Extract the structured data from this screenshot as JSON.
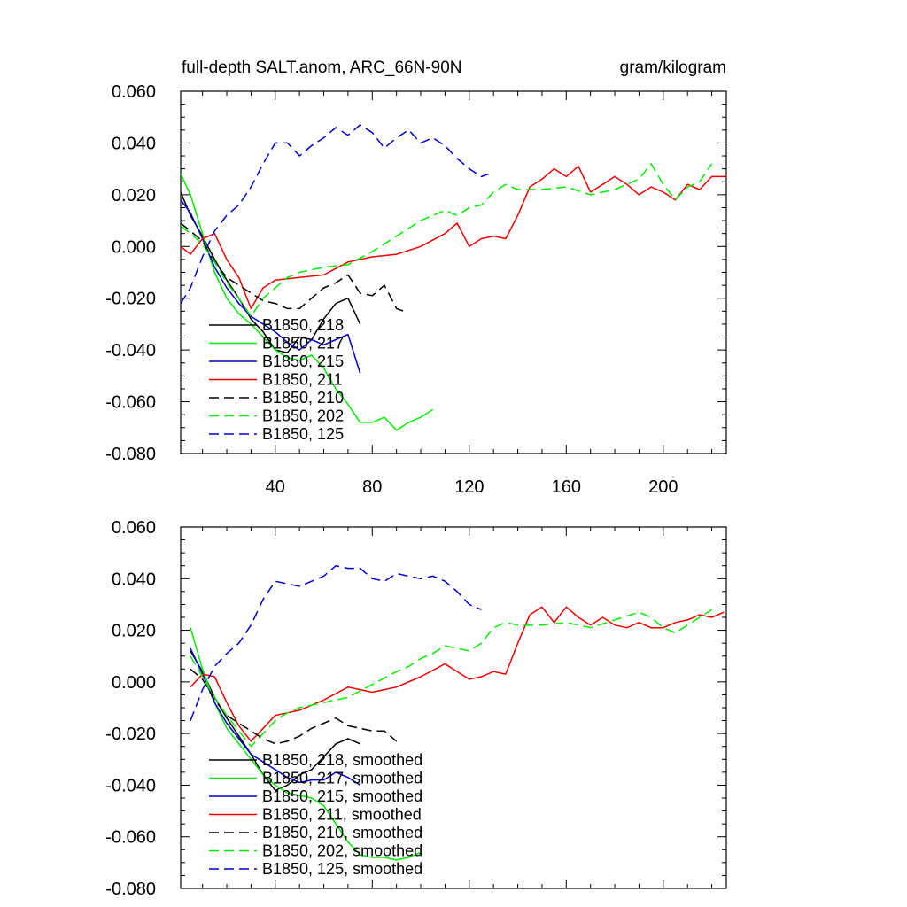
{
  "figure": {
    "title_left": "full-depth SALT.anom, ARC_66N-90N",
    "title_right": "gram/kilogram"
  },
  "chart_data": [
    {
      "type": "line",
      "panel": "top",
      "title": "full-depth SALT.anom, ARC_66N-90N",
      "units": "gram/kilogram",
      "xlim": [
        1,
        226
      ],
      "ylim": [
        -0.08,
        0.06
      ],
      "x_ticks": [
        40,
        80,
        120,
        160,
        200
      ],
      "x_tick_labels": [
        "40",
        "80",
        "120",
        "160",
        "200"
      ],
      "y_ticks": [
        -0.08,
        -0.06,
        -0.04,
        -0.02,
        0.0,
        0.02,
        0.04,
        0.06
      ],
      "y_tick_labels": [
        "-0.080",
        "-0.060",
        "-0.040",
        "-0.020",
        "0.000",
        "0.020",
        "0.040",
        "0.060"
      ],
      "legend_position": "lower-left",
      "series": [
        {
          "name": "B1850, 218",
          "color": "#000000",
          "dash": "solid",
          "x": [
            1,
            5,
            10,
            15,
            20,
            25,
            30,
            35,
            40,
            45,
            50,
            55,
            60,
            65,
            70,
            75
          ],
          "y": [
            0.021,
            0.012,
            0.004,
            -0.005,
            -0.013,
            -0.02,
            -0.028,
            -0.033,
            -0.04,
            -0.041,
            -0.035,
            -0.036,
            -0.028,
            -0.022,
            -0.02,
            -0.03
          ]
        },
        {
          "name": "B1850, 217",
          "color": "#00ee00",
          "dash": "solid",
          "x": [
            1,
            5,
            10,
            15,
            20,
            25,
            30,
            35,
            40,
            45,
            50,
            55,
            60,
            65,
            70,
            75,
            80,
            85,
            90,
            95,
            100,
            105
          ],
          "y": [
            0.028,
            0.02,
            0.005,
            -0.01,
            -0.02,
            -0.026,
            -0.03,
            -0.035,
            -0.04,
            -0.043,
            -0.044,
            -0.042,
            -0.047,
            -0.055,
            -0.061,
            -0.068,
            -0.068,
            -0.066,
            -0.071,
            -0.068,
            -0.066,
            -0.063
          ]
        },
        {
          "name": "B1850, 215",
          "color": "#0000cc",
          "dash": "solid",
          "x": [
            1,
            5,
            10,
            15,
            20,
            25,
            30,
            35,
            40,
            45,
            50,
            55,
            60,
            65,
            70,
            75
          ],
          "y": [
            0.018,
            0.013,
            0.003,
            -0.008,
            -0.016,
            -0.022,
            -0.027,
            -0.03,
            -0.033,
            -0.037,
            -0.04,
            -0.036,
            -0.038,
            -0.036,
            -0.034,
            -0.049
          ]
        },
        {
          "name": "B1850, 211",
          "color": "#ee0000",
          "dash": "solid",
          "x": [
            1,
            5,
            10,
            15,
            20,
            25,
            30,
            35,
            40,
            50,
            60,
            70,
            80,
            90,
            100,
            110,
            115,
            120,
            125,
            130,
            135,
            140,
            145,
            150,
            155,
            160,
            165,
            170,
            175,
            180,
            185,
            190,
            195,
            200,
            205,
            210,
            215,
            220,
            226
          ],
          "y": [
            0.0,
            -0.003,
            0.003,
            0.005,
            -0.005,
            -0.012,
            -0.024,
            -0.016,
            -0.013,
            -0.012,
            -0.011,
            -0.006,
            -0.004,
            -0.003,
            0.0,
            0.005,
            0.009,
            0.0,
            0.003,
            0.004,
            0.003,
            0.012,
            0.023,
            0.026,
            0.03,
            0.027,
            0.031,
            0.021,
            0.024,
            0.027,
            0.024,
            0.02,
            0.023,
            0.021,
            0.018,
            0.024,
            0.022,
            0.027,
            0.027
          ]
        },
        {
          "name": "B1850, 210",
          "color": "#000000",
          "dash": "dashed",
          "x": [
            1,
            5,
            10,
            15,
            20,
            25,
            30,
            35,
            40,
            45,
            50,
            55,
            60,
            65,
            70,
            75,
            80,
            85,
            90,
            93
          ],
          "y": [
            0.009,
            0.006,
            0.002,
            -0.006,
            -0.012,
            -0.015,
            -0.018,
            -0.021,
            -0.022,
            -0.024,
            -0.024,
            -0.02,
            -0.016,
            -0.014,
            -0.011,
            -0.018,
            -0.019,
            -0.015,
            -0.024,
            -0.025
          ]
        },
        {
          "name": "B1850, 202",
          "color": "#00ee00",
          "dash": "dashed",
          "x": [
            1,
            5,
            10,
            15,
            20,
            25,
            30,
            35,
            40,
            45,
            50,
            60,
            70,
            80,
            90,
            95,
            100,
            105,
            110,
            115,
            120,
            125,
            130,
            135,
            140,
            150,
            160,
            170,
            180,
            190,
            195,
            200,
            205,
            210,
            215,
            220
          ],
          "y": [
            0.008,
            0.005,
            0.001,
            -0.006,
            -0.014,
            -0.02,
            -0.027,
            -0.02,
            -0.016,
            -0.012,
            -0.01,
            -0.008,
            -0.007,
            -0.002,
            0.004,
            0.007,
            0.01,
            0.012,
            0.014,
            0.012,
            0.015,
            0.016,
            0.021,
            0.024,
            0.022,
            0.022,
            0.023,
            0.02,
            0.022,
            0.026,
            0.032,
            0.024,
            0.018,
            0.023,
            0.025,
            0.032
          ]
        },
        {
          "name": "B1850, 125",
          "color": "#0000cc",
          "dash": "dashed",
          "x": [
            1,
            5,
            10,
            15,
            20,
            25,
            30,
            35,
            40,
            45,
            50,
            55,
            60,
            65,
            70,
            75,
            80,
            85,
            90,
            95,
            100,
            105,
            110,
            115,
            120,
            125,
            128
          ],
          "y": [
            -0.022,
            -0.016,
            -0.004,
            0.006,
            0.012,
            0.016,
            0.023,
            0.032,
            0.04,
            0.04,
            0.035,
            0.039,
            0.042,
            0.046,
            0.043,
            0.047,
            0.044,
            0.038,
            0.042,
            0.045,
            0.04,
            0.042,
            0.039,
            0.034,
            0.03,
            0.027,
            0.028
          ]
        }
      ]
    },
    {
      "type": "line",
      "panel": "bottom",
      "xlim": [
        1,
        226
      ],
      "ylim": [
        -0.08,
        0.06
      ],
      "x_ticks": [
        40,
        80,
        120,
        160,
        200
      ],
      "y_ticks": [
        -0.08,
        -0.06,
        -0.04,
        -0.02,
        0.0,
        0.02,
        0.04,
        0.06
      ],
      "y_tick_labels": [
        "-0.080",
        "-0.060",
        "-0.040",
        "-0.020",
        "0.000",
        "0.020",
        "0.040",
        "0.060"
      ],
      "legend_position": "lower-left",
      "series": [
        {
          "name": "B1850, 218, smoothed",
          "color": "#000000",
          "dash": "solid",
          "x": [
            5,
            10,
            15,
            20,
            25,
            30,
            35,
            40,
            45,
            50,
            55,
            60,
            65,
            70,
            75
          ],
          "y": [
            0.012,
            0.004,
            -0.006,
            -0.014,
            -0.021,
            -0.028,
            -0.036,
            -0.042,
            -0.04,
            -0.036,
            -0.034,
            -0.029,
            -0.024,
            -0.022,
            -0.024
          ]
        },
        {
          "name": "B1850, 217, smoothed",
          "color": "#00ee00",
          "dash": "solid",
          "x": [
            5,
            10,
            15,
            20,
            25,
            30,
            35,
            40,
            45,
            50,
            55,
            60,
            65,
            70,
            75,
            80,
            85,
            90,
            95,
            100
          ],
          "y": [
            0.021,
            0.005,
            -0.008,
            -0.018,
            -0.024,
            -0.03,
            -0.036,
            -0.04,
            -0.043,
            -0.044,
            -0.045,
            -0.048,
            -0.055,
            -0.062,
            -0.067,
            -0.068,
            -0.068,
            -0.069,
            -0.068,
            -0.066
          ]
        },
        {
          "name": "B1850, 215, smoothed",
          "color": "#0000cc",
          "dash": "solid",
          "x": [
            5,
            10,
            15,
            20,
            25,
            30,
            35,
            40,
            45,
            50,
            55,
            60,
            65,
            70,
            75
          ],
          "y": [
            0.013,
            0.003,
            -0.008,
            -0.016,
            -0.022,
            -0.028,
            -0.031,
            -0.034,
            -0.037,
            -0.039,
            -0.038,
            -0.038,
            -0.035,
            -0.037,
            -0.04
          ]
        },
        {
          "name": "B1850, 211, smoothed",
          "color": "#ee0000",
          "dash": "solid",
          "x": [
            5,
            10,
            15,
            20,
            25,
            30,
            35,
            40,
            50,
            60,
            70,
            80,
            90,
            100,
            110,
            115,
            120,
            125,
            130,
            135,
            140,
            145,
            150,
            155,
            160,
            165,
            170,
            175,
            180,
            185,
            190,
            195,
            200,
            205,
            210,
            215,
            220,
            225
          ],
          "y": [
            -0.002,
            0.003,
            0.002,
            -0.008,
            -0.017,
            -0.023,
            -0.018,
            -0.013,
            -0.011,
            -0.007,
            -0.002,
            -0.004,
            -0.002,
            0.002,
            0.007,
            0.004,
            0.001,
            0.002,
            0.004,
            0.003,
            0.015,
            0.026,
            0.029,
            0.023,
            0.029,
            0.025,
            0.022,
            0.025,
            0.022,
            0.021,
            0.023,
            0.021,
            0.021,
            0.023,
            0.024,
            0.026,
            0.025,
            0.027
          ]
        },
        {
          "name": "B1850, 210, smoothed",
          "color": "#000000",
          "dash": "dashed",
          "x": [
            5,
            10,
            15,
            20,
            25,
            30,
            35,
            40,
            45,
            50,
            55,
            60,
            65,
            70,
            75,
            80,
            85,
            90
          ],
          "y": [
            0.005,
            0.001,
            -0.007,
            -0.013,
            -0.016,
            -0.019,
            -0.022,
            -0.024,
            -0.023,
            -0.021,
            -0.018,
            -0.016,
            -0.014,
            -0.017,
            -0.018,
            -0.019,
            -0.019,
            -0.023
          ]
        },
        {
          "name": "B1850, 202, smoothed",
          "color": "#00ee00",
          "dash": "dashed",
          "x": [
            5,
            10,
            15,
            20,
            25,
            30,
            35,
            40,
            45,
            50,
            60,
            70,
            80,
            90,
            95,
            100,
            105,
            110,
            115,
            120,
            125,
            130,
            135,
            140,
            150,
            160,
            170,
            180,
            190,
            195,
            200,
            205,
            210,
            215,
            220
          ],
          "y": [
            0.01,
            0.002,
            -0.006,
            -0.013,
            -0.019,
            -0.025,
            -0.02,
            -0.015,
            -0.012,
            -0.01,
            -0.008,
            -0.006,
            -0.001,
            0.004,
            0.006,
            0.009,
            0.011,
            0.014,
            0.013,
            0.012,
            0.015,
            0.021,
            0.023,
            0.022,
            0.022,
            0.023,
            0.021,
            0.024,
            0.027,
            0.025,
            0.021,
            0.019,
            0.022,
            0.025,
            0.028
          ]
        },
        {
          "name": "B1850, 125, smoothed",
          "color": "#0000cc",
          "dash": "dashed",
          "x": [
            5,
            10,
            15,
            20,
            25,
            30,
            35,
            40,
            45,
            50,
            55,
            60,
            65,
            70,
            75,
            80,
            85,
            90,
            95,
            100,
            105,
            110,
            115,
            120,
            125
          ],
          "y": [
            -0.015,
            -0.003,
            0.006,
            0.011,
            0.015,
            0.022,
            0.032,
            0.039,
            0.038,
            0.037,
            0.039,
            0.041,
            0.045,
            0.044,
            0.044,
            0.04,
            0.039,
            0.042,
            0.041,
            0.04,
            0.041,
            0.039,
            0.035,
            0.03,
            0.028
          ]
        }
      ]
    }
  ]
}
